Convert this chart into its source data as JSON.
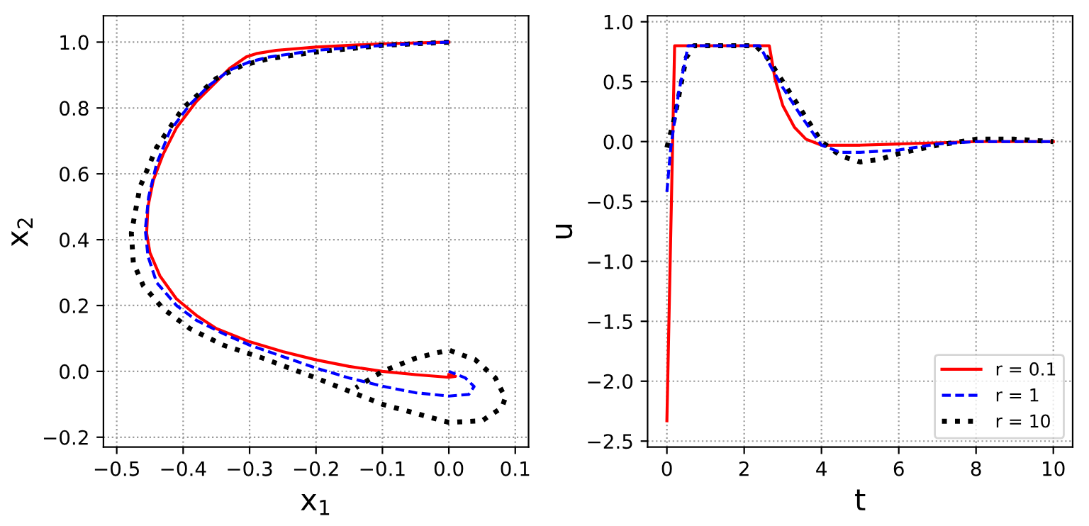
{
  "chart_data": [
    {
      "type": "line",
      "xlabel": "x$_{1}$",
      "ylabel": "x$_{2}$",
      "xlim": [
        -0.52,
        0.12
      ],
      "ylim": [
        -0.23,
        1.08
      ],
      "xticks": [
        {
          "value": -0.5,
          "label": "−0.5"
        },
        {
          "value": -0.4,
          "label": "−0.4"
        },
        {
          "value": -0.3,
          "label": "−0.3"
        },
        {
          "value": -0.2,
          "label": "−0.2"
        },
        {
          "value": -0.1,
          "label": "−0.1"
        },
        {
          "value": 0,
          "label": "0.0"
        },
        {
          "value": 0.1,
          "label": "0.1"
        }
      ],
      "yticks": [
        {
          "value": -0.2,
          "label": "−0.2"
        },
        {
          "value": 0,
          "label": "0.0"
        },
        {
          "value": 0.2,
          "label": "0.2"
        },
        {
          "value": 0.4,
          "label": "0.4"
        },
        {
          "value": 0.6,
          "label": "0.6"
        },
        {
          "value": 0.8,
          "label": "0.8"
        },
        {
          "value": 1,
          "label": "1.0"
        }
      ],
      "grid": true,
      "legend": false,
      "series": [
        {
          "color": "#ff0000",
          "line_style": "solid",
          "x": [
            0,
            -0.1,
            -0.2,
            -0.26,
            -0.29,
            -0.305,
            -0.33,
            -0.35,
            -0.38,
            -0.41,
            -0.43,
            -0.445,
            -0.453,
            -0.455,
            -0.45,
            -0.435,
            -0.41,
            -0.38,
            -0.35,
            -0.3,
            -0.25,
            -0.2,
            -0.15,
            -0.1,
            -0.05,
            0.0,
            0.01,
            0.0
          ],
          "values": [
            1.0,
            0.995,
            0.985,
            0.975,
            0.965,
            0.955,
            0.92,
            0.88,
            0.82,
            0.74,
            0.66,
            0.58,
            0.5,
            0.42,
            0.36,
            0.29,
            0.22,
            0.17,
            0.13,
            0.09,
            0.06,
            0.035,
            0.015,
            0.0,
            -0.01,
            -0.018,
            -0.015,
            -0.01
          ]
        },
        {
          "color": "#0000ff",
          "line_style": "dashed",
          "x": [
            0,
            -0.1,
            -0.2,
            -0.27,
            -0.3,
            -0.33,
            -0.36,
            -0.39,
            -0.42,
            -0.44,
            -0.452,
            -0.457,
            -0.453,
            -0.44,
            -0.41,
            -0.38,
            -0.34,
            -0.3,
            -0.25,
            -0.2,
            -0.15,
            -0.1,
            -0.05,
            0.0,
            0.03,
            0.038,
            0.025,
            0.0
          ],
          "values": [
            1.0,
            0.99,
            0.975,
            0.955,
            0.94,
            0.915,
            0.87,
            0.81,
            0.73,
            0.63,
            0.53,
            0.43,
            0.35,
            0.27,
            0.2,
            0.155,
            0.115,
            0.08,
            0.045,
            0.01,
            -0.02,
            -0.045,
            -0.065,
            -0.075,
            -0.07,
            -0.046,
            -0.02,
            0.0
          ]
        },
        {
          "color": "#000000",
          "line_style": "dotted",
          "x": [
            0,
            -0.1,
            -0.2,
            -0.27,
            -0.31,
            -0.35,
            -0.4,
            -0.44,
            -0.465,
            -0.478,
            -0.475,
            -0.46,
            -0.43,
            -0.39,
            -0.34,
            -0.28,
            -0.2,
            -0.1,
            0.0,
            0.05,
            0.08,
            0.085,
            0.07,
            0.04,
            0.0,
            -0.05,
            -0.1,
            -0.14
          ],
          "values": [
            1.0,
            0.99,
            0.97,
            0.95,
            0.93,
            0.89,
            0.8,
            0.68,
            0.56,
            0.42,
            0.33,
            0.26,
            0.19,
            0.13,
            0.08,
            0.04,
            -0.02,
            -0.1,
            -0.155,
            -0.15,
            -0.11,
            -0.08,
            -0.02,
            0.035,
            0.065,
            0.04,
            0.0,
            -0.05
          ]
        }
      ]
    },
    {
      "type": "line",
      "xlabel": "t",
      "ylabel": "u",
      "xlim": [
        -0.5,
        10.5
      ],
      "ylim": [
        -2.55,
        1.05
      ],
      "xticks": [
        0,
        2,
        4,
        6,
        8,
        10
      ],
      "yticks": [
        {
          "value": -2.5,
          "label": "−2.5"
        },
        {
          "value": -2,
          "label": "−2.0"
        },
        {
          "value": -1.5,
          "label": "−1.5"
        },
        {
          "value": -1,
          "label": "−1.0"
        },
        {
          "value": -0.5,
          "label": "−0.5"
        },
        {
          "value": 0,
          "label": "0.0"
        },
        {
          "value": 0.5,
          "label": "0.5"
        },
        {
          "value": 1,
          "label": "1.0"
        }
      ],
      "grid": true,
      "legend": "bottom right",
      "series": [
        {
          "name": "r = 0.1",
          "color": "#ff0000",
          "line_style": "solid",
          "x": [
            0,
            0.2,
            2.6,
            2.65,
            2.8,
            3.0,
            3.3,
            3.6,
            4.0,
            5.0,
            6.0,
            8.0,
            10.0
          ],
          "values": [
            -2.33,
            0.8,
            0.8,
            0.8,
            0.52,
            0.3,
            0.12,
            0.02,
            -0.03,
            -0.03,
            -0.02,
            0.0,
            0
          ]
        },
        {
          "name": "r = 1",
          "color": "#0000ff",
          "line_style": "dashed",
          "x": [
            0,
            0.1,
            0.3,
            0.55,
            2.4,
            2.7,
            3.0,
            3.5,
            4.0,
            4.5,
            5.0,
            6.0,
            7.0,
            8.0,
            10.0
          ],
          "values": [
            -0.42,
            -0.05,
            0.4,
            0.8,
            0.8,
            0.62,
            0.45,
            0.2,
            -0.03,
            -0.09,
            -0.09,
            -0.07,
            -0.02,
            0.0,
            0.0
          ]
        },
        {
          "name": "r = 10",
          "color": "#000000",
          "line_style": "dotted",
          "x": [
            0,
            0.2,
            0.5,
            0.7,
            2.3,
            2.6,
            3.0,
            3.5,
            4.0,
            4.5,
            5.0,
            5.5,
            6.0,
            7.0,
            8.0,
            9.0,
            10.0
          ],
          "values": [
            -0.05,
            0.2,
            0.7,
            0.8,
            0.8,
            0.7,
            0.5,
            0.25,
            0.0,
            -0.12,
            -0.17,
            -0.15,
            -0.1,
            -0.03,
            0.02,
            0.02,
            0.0
          ]
        }
      ]
    }
  ]
}
